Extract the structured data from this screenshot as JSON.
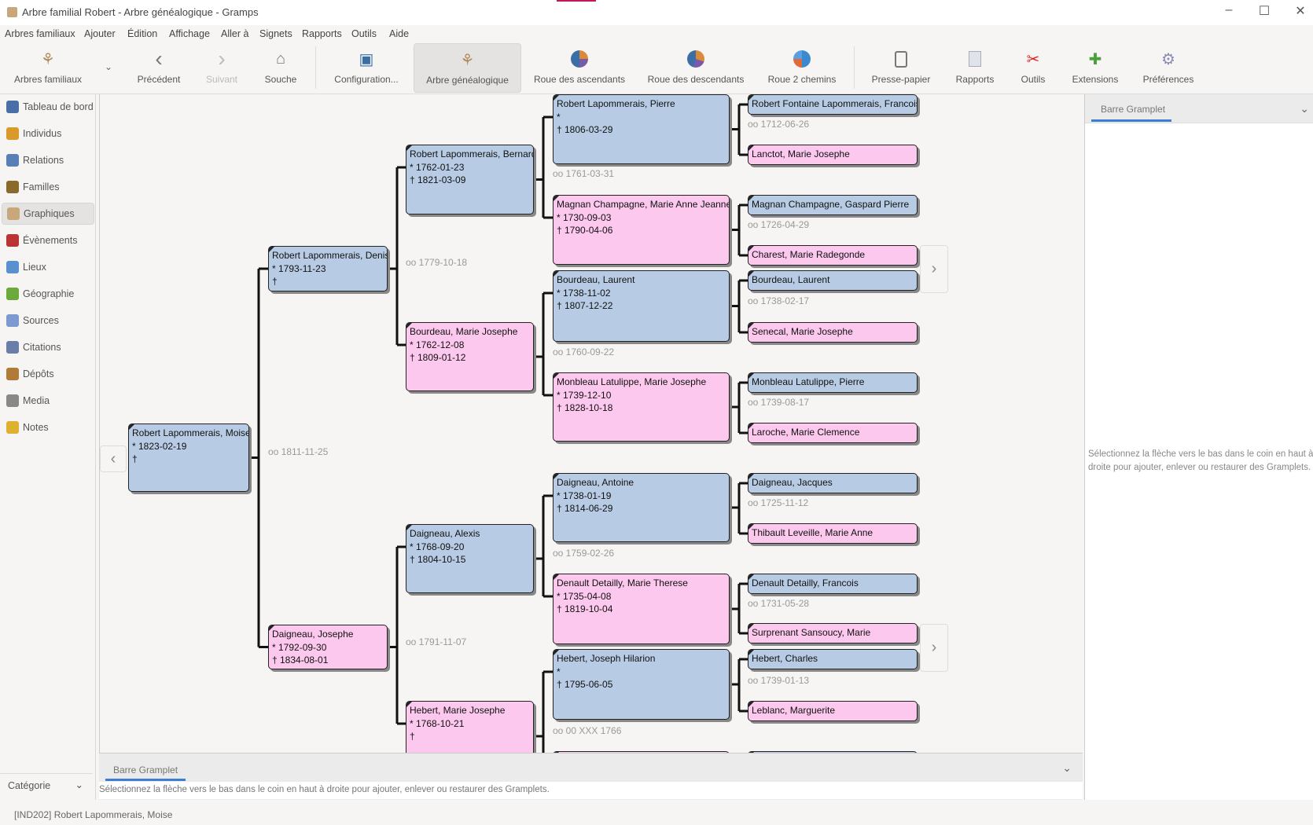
{
  "window": {
    "title": "Arbre familial Robert - Arbre généalogique - Gramps",
    "minimize": "–",
    "maximize": "☐",
    "close": "✕"
  },
  "menu": [
    "Arbres familiaux",
    "Ajouter",
    "Édition",
    "Affichage",
    "Aller à",
    "Signets",
    "Rapports",
    "Outils",
    "Aide"
  ],
  "toolbar": [
    {
      "label": "Arbres familiaux",
      "icon": "family-tree-icon",
      "state": "normal"
    },
    {
      "label": "Précédent",
      "icon": "chevron-left-icon",
      "state": "normal"
    },
    {
      "label": "Suivant",
      "icon": "chevron-right-icon",
      "state": "disabled"
    },
    {
      "label": "Souche",
      "icon": "home-icon",
      "state": "normal"
    },
    {
      "label": "Configuration...",
      "icon": "configure-icon",
      "state": "normal"
    },
    {
      "label": "Arbre généalogique",
      "icon": "pedigree-icon",
      "state": "active"
    },
    {
      "label": "Roue des ascendants",
      "icon": "fan-chart-icon",
      "state": "normal"
    },
    {
      "label": "Roue des descendants",
      "icon": "descendant-fan-icon",
      "state": "normal"
    },
    {
      "label": "Roue 2 chemins",
      "icon": "two-way-fan-icon",
      "state": "normal"
    },
    {
      "label": "Presse-papier",
      "icon": "clipboard-icon",
      "state": "normal"
    },
    {
      "label": "Rapports",
      "icon": "reports-icon",
      "state": "normal"
    },
    {
      "label": "Outils",
      "icon": "tools-icon",
      "state": "normal"
    },
    {
      "label": "Extensions",
      "icon": "puzzle-icon",
      "state": "normal"
    },
    {
      "label": "Préférences",
      "icon": "gear-icon",
      "state": "normal"
    }
  ],
  "sidebar": {
    "items": [
      {
        "label": "Tableau de bord",
        "color": "#4a6fa8"
      },
      {
        "label": "Individus",
        "color": "#d99a2b"
      },
      {
        "label": "Relations",
        "color": "#5a7fb8"
      },
      {
        "label": "Familles",
        "color": "#8a6a2a"
      },
      {
        "label": "Graphiques",
        "color": "#c9a77a",
        "active": true
      },
      {
        "label": "Évènements",
        "color": "#b33"
      },
      {
        "label": "Lieux",
        "color": "#5b8fd0"
      },
      {
        "label": "Géographie",
        "color": "#6aaa3a"
      },
      {
        "label": "Sources",
        "color": "#7a9ad0"
      },
      {
        "label": "Citations",
        "color": "#6a7fa8"
      },
      {
        "label": "Dépôts",
        "color": "#b07a3a"
      },
      {
        "label": "Media",
        "color": "#888"
      },
      {
        "label": "Notes",
        "color": "#e0b030"
      }
    ],
    "category": "Catégorie"
  },
  "colors": {
    "male": "#b7cce4",
    "female": "#fdc8ee",
    "accent": "#3d7ed3"
  },
  "tree": {
    "people": [
      {
        "name": "Robert Lapommerais, Moise",
        "birth": "* 1823-02-19",
        "death": "†",
        "sex": "m"
      },
      {
        "name": "Robert Lapommerais, Denis",
        "birth": "* 1793-11-23",
        "death": "†",
        "sex": "m"
      },
      {
        "name": "Daigneau, Josephe",
        "birth": "* 1792-09-30",
        "death": "† 1834-08-01",
        "sex": "f"
      },
      {
        "name": "Robert Lapommerais, Bernard",
        "birth": "* 1762-01-23",
        "death": "† 1821-03-09",
        "sex": "m"
      },
      {
        "name": "Bourdeau, Marie Josephe",
        "birth": "* 1762-12-08",
        "death": "† 1809-01-12",
        "sex": "f"
      },
      {
        "name": "Daigneau, Alexis",
        "birth": "* 1768-09-20",
        "death": "† 1804-10-15",
        "sex": "m"
      },
      {
        "name": "Hebert, Marie Josephe",
        "birth": "* 1768-10-21",
        "death": "†",
        "sex": "f"
      },
      {
        "name": "Robert Lapommerais, Pierre",
        "birth": "*",
        "death": "† 1806-03-29",
        "sex": "m"
      },
      {
        "name": "Magnan Champagne, Marie Anne Jeanne",
        "birth": "* 1730-09-03",
        "death": "† 1790-04-06",
        "sex": "f"
      },
      {
        "name": "Bourdeau, Laurent",
        "birth": "* 1738-11-02",
        "death": "† 1807-12-22",
        "sex": "m"
      },
      {
        "name": "Monbleau Latulippe, Marie Josephe",
        "birth": "* 1739-12-10",
        "death": "† 1828-10-18",
        "sex": "f"
      },
      {
        "name": "Daigneau, Antoine",
        "birth": "* 1738-01-19",
        "death": "† 1814-06-29",
        "sex": "m"
      },
      {
        "name": "Denault Detailly, Marie Therese",
        "birth": "* 1735-04-08",
        "death": "† 1819-10-04",
        "sex": "f"
      },
      {
        "name": "Hebert, Joseph Hilarion",
        "birth": "*",
        "death": "† 1795-06-05",
        "sex": "m"
      },
      {
        "name": "",
        "sex": "f"
      },
      {
        "name": "Robert Fontaine Lapommerais, Francois",
        "sex": "m"
      },
      {
        "name": "Lanctot, Marie Josephe",
        "sex": "f"
      },
      {
        "name": "Magnan Champagne, Gaspard Pierre",
        "sex": "m"
      },
      {
        "name": "Charest, Marie Radegonde",
        "sex": "f"
      },
      {
        "name": "Bourdeau, Laurent",
        "sex": "m"
      },
      {
        "name": "Senecal, Marie Josephe",
        "sex": "f"
      },
      {
        "name": "Monbleau Latulippe, Pierre",
        "sex": "m"
      },
      {
        "name": "Laroche, Marie Clemence",
        "sex": "f"
      },
      {
        "name": "Daigneau, Jacques",
        "sex": "m"
      },
      {
        "name": "Thibault Leveille, Marie Anne",
        "sex": "f"
      },
      {
        "name": "Denault Detailly, Francois",
        "sex": "m"
      },
      {
        "name": "Surprenant Sansoucy, Marie",
        "sex": "f"
      },
      {
        "name": "Hebert, Charles",
        "sex": "m"
      },
      {
        "name": "Leblanc, Marguerite",
        "sex": "f"
      },
      {
        "name": "",
        "sex": "m"
      }
    ],
    "marriages": [
      "oo 1811-11-25",
      "oo 1779-10-18",
      "oo 1791-11-07",
      "oo 1761-03-31",
      "oo 1760-09-22",
      "oo 1759-02-26",
      "oo 00 XXX 1766",
      "oo 1712-06-26",
      "oo 1726-04-29",
      "oo 1738-02-17",
      "oo 1739-08-17",
      "oo 1725-11-12",
      "oo 1731-05-28",
      "oo 1739-01-13"
    ],
    "nav_left": "‹",
    "nav_right": "›"
  },
  "bottom_gramplet": {
    "tab": "Barre Gramplet",
    "message": "Sélectionnez la flèche vers le bas dans le coin en haut à droite pour ajouter, enlever ou restaurer des Gramplets.",
    "chevron": "⌄"
  },
  "right_gramplet": {
    "tab": "Barre Gramplet",
    "message": "Sélectionnez la flèche vers le bas dans le coin en haut à droite pour ajouter, enlever ou restaurer des Gramplets.",
    "chevron": "⌄"
  },
  "status": "[IND202] Robert Lapommerais, Moise"
}
